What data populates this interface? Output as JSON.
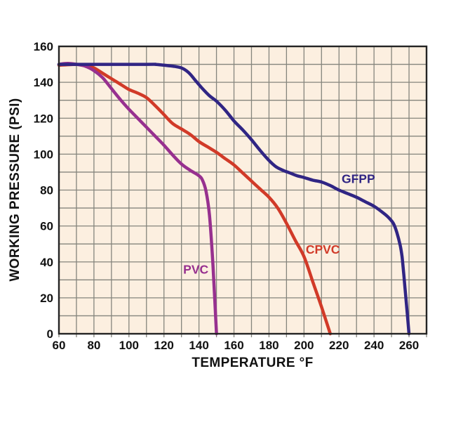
{
  "page": {
    "background": "#ffffff"
  },
  "chart_data": {
    "type": "line",
    "title": "",
    "xlabel": "TEMPERATURE °F",
    "ylabel": "WORKING PRESSURE (PSI)",
    "xlim": [
      60,
      270
    ],
    "ylim": [
      0,
      160
    ],
    "x_ticks": [
      60,
      80,
      100,
      120,
      140,
      160,
      180,
      200,
      220,
      240,
      260
    ],
    "y_ticks": [
      0,
      20,
      40,
      60,
      80,
      100,
      120,
      140,
      160
    ],
    "grid_step": 10,
    "grid_on": true,
    "legend_position": "inline-labels",
    "colors": {
      "plot_bg": "#fcefe0",
      "grid": "#85857d",
      "border": "#242424",
      "tick_text": "#111111"
    },
    "series": [
      {
        "name": "CPVC",
        "color": "#d13a28",
        "label_at": {
          "t": 201,
          "psi": 44.5
        },
        "points": [
          [
            60,
            149.5
          ],
          [
            70,
            150
          ],
          [
            75,
            149.5
          ],
          [
            80,
            148
          ],
          [
            85,
            145
          ],
          [
            90,
            142
          ],
          [
            95,
            139
          ],
          [
            100,
            136
          ],
          [
            105,
            134
          ],
          [
            110,
            131.5
          ],
          [
            115,
            127
          ],
          [
            120,
            122
          ],
          [
            125,
            117
          ],
          [
            130,
            114
          ],
          [
            135,
            111
          ],
          [
            140,
            107
          ],
          [
            145,
            104
          ],
          [
            150,
            101
          ],
          [
            155,
            97.5
          ],
          [
            160,
            94
          ],
          [
            165,
            89.5
          ],
          [
            170,
            85
          ],
          [
            175,
            80.5
          ],
          [
            180,
            76
          ],
          [
            185,
            70
          ],
          [
            190,
            61.5
          ],
          [
            195,
            52
          ],
          [
            200,
            43
          ],
          [
            205,
            29
          ],
          [
            210,
            15
          ],
          [
            215,
            0
          ]
        ]
      },
      {
        "name": "PVC",
        "color": "#97308f",
        "label_at": {
          "t": 131,
          "psi": 33.5
        },
        "points": [
          [
            60,
            150
          ],
          [
            65,
            150.5
          ],
          [
            70,
            150
          ],
          [
            75,
            149
          ],
          [
            80,
            146.5
          ],
          [
            85,
            142.5
          ],
          [
            90,
            136.5
          ],
          [
            95,
            130.5
          ],
          [
            100,
            125
          ],
          [
            105,
            120
          ],
          [
            110,
            115
          ],
          [
            115,
            110
          ],
          [
            120,
            105
          ],
          [
            125,
            99.5
          ],
          [
            130,
            94.5
          ],
          [
            135,
            91
          ],
          [
            140,
            88
          ],
          [
            142,
            85.5
          ],
          [
            144,
            79.5
          ],
          [
            146,
            66
          ],
          [
            148,
            38
          ],
          [
            150,
            0
          ]
        ]
      },
      {
        "name": "GFPP",
        "color": "#302584",
        "label_at": {
          "t": 221.5,
          "psi": 84
        },
        "points": [
          [
            60,
            150
          ],
          [
            110,
            150
          ],
          [
            115,
            150
          ],
          [
            120,
            149.5
          ],
          [
            125,
            149
          ],
          [
            130,
            148
          ],
          [
            134,
            145.5
          ],
          [
            138,
            141
          ],
          [
            142,
            136.5
          ],
          [
            146,
            132.5
          ],
          [
            150,
            129.5
          ],
          [
            155,
            124.5
          ],
          [
            160,
            118.5
          ],
          [
            165,
            113.5
          ],
          [
            170,
            108
          ],
          [
            175,
            102
          ],
          [
            180,
            96.5
          ],
          [
            184,
            93
          ],
          [
            188,
            91
          ],
          [
            192,
            89.5
          ],
          [
            196,
            88
          ],
          [
            200,
            87
          ],
          [
            205,
            85.5
          ],
          [
            210,
            84.5
          ],
          [
            215,
            82.5
          ],
          [
            220,
            80
          ],
          [
            225,
            78
          ],
          [
            230,
            76
          ],
          [
            235,
            73.5
          ],
          [
            240,
            71
          ],
          [
            245,
            67.5
          ],
          [
            248,
            65
          ],
          [
            251,
            61.5
          ],
          [
            253,
            56.5
          ],
          [
            255,
            49
          ],
          [
            256,
            43
          ],
          [
            257,
            33
          ],
          [
            258,
            22
          ],
          [
            259,
            11
          ],
          [
            260,
            0
          ]
        ]
      }
    ]
  }
}
